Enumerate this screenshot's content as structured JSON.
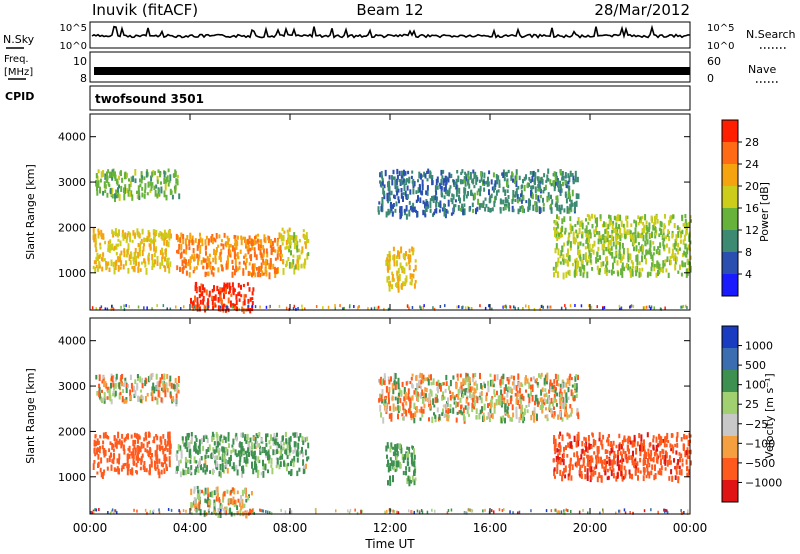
{
  "header": {
    "station": "Inuvik (fitACF)",
    "beam": "Beam 12",
    "date": "28/Mar/2012"
  },
  "noise_panel": {
    "left_label": "N.Sky",
    "right_label": "N.Search",
    "left_ticks": [
      "10^5",
      "10^0"
    ],
    "right_ticks": [
      "10^5",
      "10^0"
    ]
  },
  "freq_panel": {
    "left_label_1": "Freq.",
    "left_label_2": "[MHz]",
    "right_label": "Nave",
    "left_ticks": [
      "10",
      "8"
    ],
    "right_ticks": [
      "60",
      "0"
    ]
  },
  "cpid_panel": {
    "label": "CPID",
    "program": "twofsound 3501"
  },
  "power_panel": {
    "ylabel": "Slant Range [km]",
    "yticks": [
      "4000",
      "3000",
      "2000",
      "1000"
    ],
    "colorbar_label": "Power [dB]",
    "colorbar_ticks": [
      "28",
      "24",
      "20",
      "16",
      "12",
      "8",
      "4"
    ]
  },
  "velocity_panel": {
    "ylabel": "Slant Range [km]",
    "yticks": [
      "4000",
      "3000",
      "2000",
      "1000"
    ],
    "colorbar_label": "Velocity [m s⁻¹]",
    "colorbar_ticks": [
      "1000",
      "500",
      "100",
      "25",
      "−25",
      "−100",
      "−500",
      "−1000"
    ]
  },
  "xaxis": {
    "label": "Time UT",
    "ticks": [
      "00:00",
      "04:00",
      "08:00",
      "12:00",
      "16:00",
      "20:00",
      "00:00"
    ]
  },
  "colors": {
    "power_scale": [
      "#1a1aff",
      "#2a4fb0",
      "#3d8a73",
      "#66b23a",
      "#cccc1a",
      "#f5a30e",
      "#ff6a14",
      "#ff1e00"
    ],
    "velocity_scale": [
      "#e01414",
      "#ff5a1e",
      "#f5a040",
      "#c8c8c8",
      "#a0d070",
      "#3d9050",
      "#3a6eb0",
      "#1a3cc0"
    ]
  },
  "chart_data": [
    {
      "type": "heatmap",
      "title": "Power",
      "xlabel": "Time UT",
      "ylabel": "Slant Range [km]",
      "xlim": [
        0,
        24
      ],
      "ylim": [
        180,
        4500
      ],
      "zlabel": "Power [dB]",
      "zlim": [
        0,
        32
      ],
      "regions": [
        {
          "t": [
            0.2,
            3.6
          ],
          "r": [
            2700,
            3300
          ],
          "z": 14
        },
        {
          "t": [
            0.1,
            3.2
          ],
          "r": [
            1100,
            2000
          ],
          "z": 20
        },
        {
          "t": [
            3.4,
            7.6
          ],
          "r": [
            1000,
            1900
          ],
          "z": 24
        },
        {
          "t": [
            7.6,
            8.7
          ],
          "r": [
            1100,
            2000
          ],
          "z": 18
        },
        {
          "t": [
            4.0,
            6.5
          ],
          "r": [
            200,
            800
          ],
          "z": 30
        },
        {
          "t": [
            11.8,
            13.0
          ],
          "r": [
            700,
            1600
          ],
          "z": 20
        },
        {
          "t": [
            11.5,
            14.5
          ],
          "r": [
            2300,
            3300
          ],
          "z": 8
        },
        {
          "t": [
            14.5,
            19.5
          ],
          "r": [
            2400,
            3300
          ],
          "z": 10
        },
        {
          "t": [
            18.5,
            24.0
          ],
          "r": [
            1000,
            2300
          ],
          "z": 16
        }
      ]
    },
    {
      "type": "heatmap",
      "title": "Velocity",
      "xlabel": "Time UT",
      "ylabel": "Slant Range [km]",
      "xlim": [
        0,
        24
      ],
      "ylim": [
        180,
        4500
      ],
      "zlabel": "Velocity [m s^-1]",
      "zlim": [
        -1000,
        1000
      ],
      "regions": [
        {
          "t": [
            0.2,
            3.6
          ],
          "r": [
            2700,
            3300
          ],
          "z": -20
        },
        {
          "t": [
            0.1,
            3.2
          ],
          "r": [
            1100,
            2000
          ],
          "z": -300
        },
        {
          "t": [
            3.4,
            8.7
          ],
          "r": [
            1100,
            2000
          ],
          "z": 150
        },
        {
          "t": [
            4.0,
            6.5
          ],
          "r": [
            200,
            800
          ],
          "z": -10
        },
        {
          "t": [
            11.8,
            13.0
          ],
          "r": [
            900,
            1800
          ],
          "z": 200
        },
        {
          "t": [
            11.5,
            19.5
          ],
          "r": [
            2300,
            3300
          ],
          "z": -20
        },
        {
          "t": [
            18.5,
            24.0
          ],
          "r": [
            1000,
            2000
          ],
          "z": -400
        }
      ]
    }
  ]
}
